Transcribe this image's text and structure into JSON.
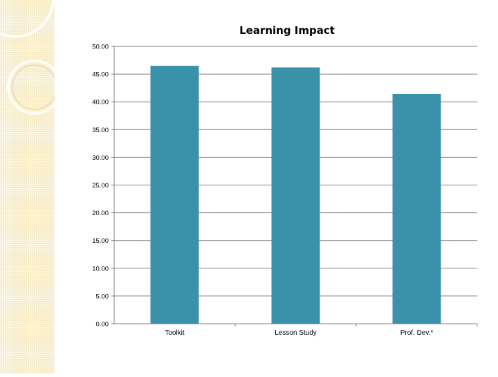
{
  "colors": {
    "bar": "#3a92aa",
    "grid": "#808080",
    "panel": "#f6ebc4"
  },
  "chart_data": {
    "type": "bar",
    "title": "Learning Impact",
    "categories": [
      "Toolkit",
      "Lesson Study",
      "Prof. Dev.*"
    ],
    "values": [
      46.5,
      46.2,
      41.4
    ],
    "ylim": [
      0,
      50
    ],
    "yticks": [
      "0.00",
      "5.00",
      "10.00",
      "15.00",
      "20.00",
      "25.00",
      "30.00",
      "35.00",
      "40.00",
      "45.00",
      "50.00"
    ],
    "xlabel": "",
    "ylabel": "",
    "grid": true,
    "legend": "none"
  }
}
